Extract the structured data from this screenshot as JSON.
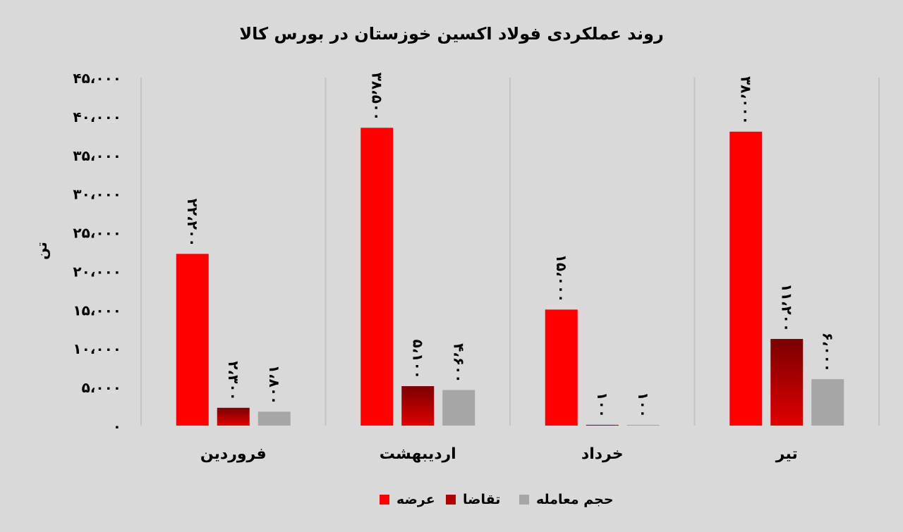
{
  "chart_data": {
    "type": "bar",
    "title": "روند عملکردی فولاد اکسین خوزستان در بورس کالا",
    "ylabel": "تن",
    "xlabel": "",
    "ylim": [
      0,
      45000
    ],
    "yticks": [
      0,
      5000,
      10000,
      15000,
      20000,
      25000,
      30000,
      35000,
      40000,
      45000
    ],
    "ytick_labels": [
      "۰",
      "۵،۰۰۰",
      "۱۰،۰۰۰",
      "۱۵،۰۰۰",
      "۲۰،۰۰۰",
      "۲۵،۰۰۰",
      "۳۰،۰۰۰",
      "۳۵،۰۰۰",
      "۴۰،۰۰۰",
      "۴۵،۰۰۰"
    ],
    "categories": [
      "فروردین",
      "اردیبهشت",
      "خرداد",
      "تیر"
    ],
    "series": [
      {
        "name": "عرضه",
        "color": "#ff0000",
        "values": [
          22200,
          38500,
          15000,
          38000
        ],
        "labels": [
          "۲۲،۲۰۰",
          "۳۸،۵۰۰",
          "۱۵،۰۰۰",
          "۳۸،۰۰۰"
        ]
      },
      {
        "name": "تقاضا",
        "color": "#b00000",
        "values": [
          2300,
          5100,
          100,
          11200
        ],
        "labels": [
          "۲،۳۰۰",
          "۵،۱۰۰",
          "۱۰۰",
          "۱۱،۲۰۰"
        ]
      },
      {
        "name": "حجم معامله",
        "color": "#a6a6a6",
        "values": [
          1800,
          4600,
          100,
          6000
        ],
        "labels": [
          "۱،۸۰۰",
          "۴،۶۰۰",
          "۱۰۰",
          "۶،۰۰۰"
        ]
      }
    ],
    "grid": false,
    "legend": "bottom-center"
  }
}
